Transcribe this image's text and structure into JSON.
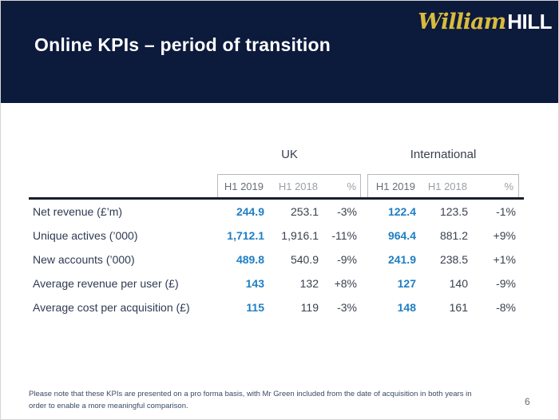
{
  "slide": {
    "title": "Online KPIs – period of transition",
    "page_number": "6",
    "footnote_lines": [
      "Please note that these KPIs are presented on a pro forma basis, with Mr Green included from the date of acquisition in both years in",
      "order to enable a more meaningful comparison."
    ]
  },
  "logo": {
    "script_text": "William",
    "block_text": "HILL"
  },
  "colors": {
    "header_navy": "#0c1a3c",
    "accent_blue": "#1e7fc4",
    "logo_yellow": "#d9bb3d",
    "text_dark": "#2e3a52",
    "subheader_gray": "#9aa0a8"
  },
  "chart_data": {
    "type": "table",
    "title": "Online KPIs – period of transition",
    "column_groups": [
      "UK",
      "International"
    ],
    "columns": [
      "H1 2019",
      "H1 2018",
      "%"
    ],
    "rows": [
      {
        "label": "Net revenue (£’m)",
        "uk": [
          "244.9",
          "253.1",
          "-3%"
        ],
        "international": [
          "122.4",
          "123.5",
          "-1%"
        ]
      },
      {
        "label": "Unique actives (’000)",
        "uk": [
          "1,712.1",
          "1,916.1",
          "-11%"
        ],
        "international": [
          "964.4",
          "881.2",
          "+9%"
        ]
      },
      {
        "label": "New accounts (’000)",
        "uk": [
          "489.8",
          "540.9",
          "-9%"
        ],
        "international": [
          "241.9",
          "238.5",
          "+1%"
        ]
      },
      {
        "label": "Average revenue per user (£)",
        "uk": [
          "143",
          "132",
          "+8%"
        ],
        "international": [
          "127",
          "140",
          "-9%"
        ]
      },
      {
        "label": "Average cost per acquisition (£)",
        "uk": [
          "115",
          "119",
          "-3%"
        ],
        "international": [
          "148",
          "161",
          "-8%"
        ]
      }
    ]
  }
}
